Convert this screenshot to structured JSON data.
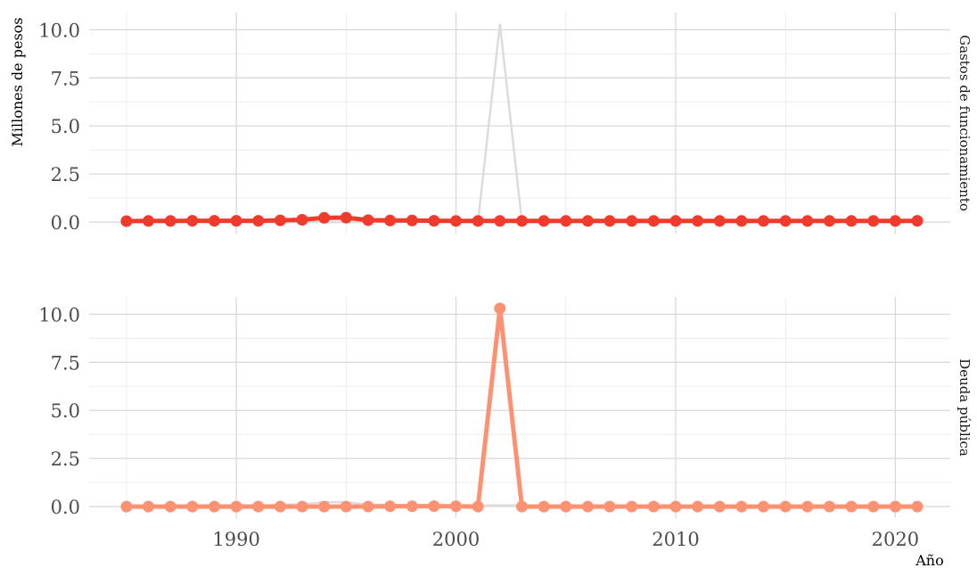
{
  "chart_data": {
    "type": "line",
    "ylabel": "Millones de pesos",
    "xlabel": "Año",
    "x": [
      1985,
      1986,
      1987,
      1988,
      1989,
      1990,
      1991,
      1992,
      1993,
      1994,
      1995,
      1996,
      1997,
      1998,
      1999,
      2000,
      2001,
      2002,
      2003,
      2004,
      2005,
      2006,
      2007,
      2008,
      2009,
      2010,
      2011,
      2012,
      2013,
      2014,
      2015,
      2016,
      2017,
      2018,
      2019,
      2020,
      2021
    ],
    "xticks": [
      1990,
      2000,
      2010,
      2020
    ],
    "xlim": [
      1983.3,
      2022.5
    ],
    "ylim": [
      -0.6,
      10.9
    ],
    "yticks": [
      "0.0",
      "2.5",
      "5.0",
      "7.5",
      "10.0"
    ],
    "grid": true,
    "panels": [
      {
        "label": "Gastos de funcionamiento",
        "color": "#EF3B2C",
        "values": [
          0.05,
          0.06,
          0.06,
          0.07,
          0.07,
          0.07,
          0.07,
          0.09,
          0.12,
          0.22,
          0.23,
          0.1,
          0.08,
          0.08,
          0.07,
          0.06,
          0.06,
          0.06,
          0.06,
          0.06,
          0.06,
          0.06,
          0.06,
          0.06,
          0.06,
          0.06,
          0.06,
          0.06,
          0.06,
          0.06,
          0.06,
          0.06,
          0.06,
          0.06,
          0.06,
          0.06,
          0.07
        ]
      },
      {
        "label": "Deuda pública",
        "color": "#FC9272",
        "values": [
          0.0,
          0.0,
          0.0,
          0.0,
          0.0,
          0.0,
          0.0,
          0.0,
          0.0,
          0.0,
          0.0,
          0.0,
          0.01,
          0.01,
          0.02,
          0.01,
          0.0,
          10.3,
          0.0,
          0.0,
          0.0,
          0.0,
          0.0,
          0.0,
          0.0,
          0.0,
          0.0,
          0.0,
          0.0,
          0.0,
          0.0,
          0.0,
          0.0,
          0.0,
          0.0,
          0.0,
          0.0
        ]
      }
    ],
    "background_series_color": "#dcdcdc",
    "grid_color": "#d9d9d9"
  }
}
